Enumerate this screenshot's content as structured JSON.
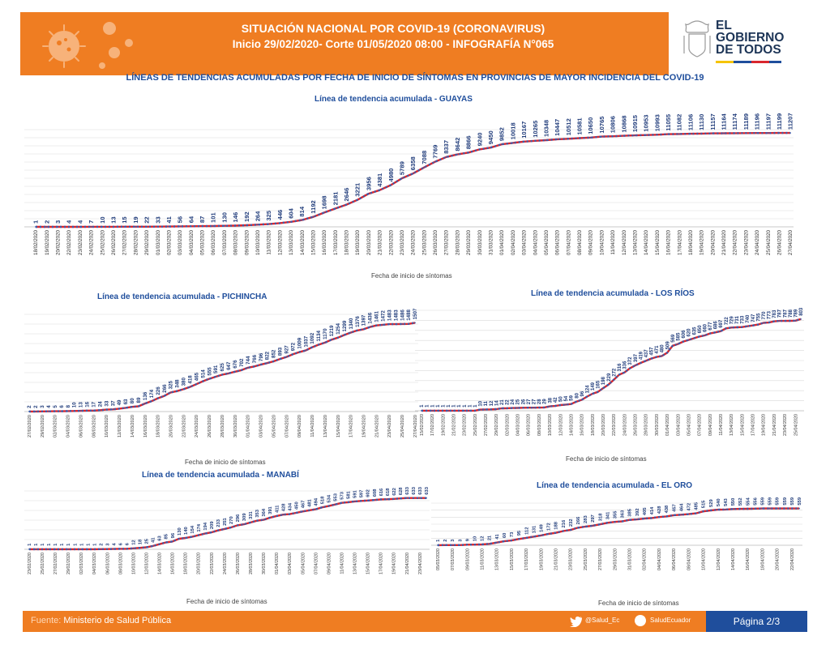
{
  "header": {
    "title_line1": "SITUACIÓN NACIONAL POR  COVID-19 (CORONAVIRUS)",
    "title_line2": "Inicio 29/02/2020- Corte 01/05/2020 08:00  - INFOGRAFÍA N°065",
    "gov_logo_text": "EL GOBIERNO DE TODOS"
  },
  "main_title": "LÍNEAS DE TENDENCIAS ACUMULADAS POR FECHA DE INICIO DE SÍNTOMAS EN PROVINCIAS DE MAYOR INCIDENCIA DEL COVID-19",
  "footer": {
    "source_label": "Fuente:",
    "source_value": "Ministerio de Salud Pública",
    "twitter": "@Salud_Ec",
    "facebook": "SaludEcuador",
    "page": "Página 2/3"
  },
  "colors": {
    "orange": "#ef7d22",
    "blue": "#1f4e9c",
    "line_red": "#d9272e",
    "line_blue": "#3a5bab"
  },
  "chart_data": [
    {
      "id": "guayas",
      "type": "line",
      "title": "Línea de tendencia acumulada - GUAYAS",
      "xlabel": "Fecha de inicio de síntomas",
      "start_date": "18/02/2020",
      "categories": [
        "18/02/2020",
        "19/02/2020",
        "20/02/2020",
        "22/02/2020",
        "23/02/2020",
        "24/02/2020",
        "25/02/2020",
        "26/02/2020",
        "27/02/2020",
        "28/02/2020",
        "29/02/2020",
        "01/03/2020",
        "02/03/2020",
        "03/03/2020",
        "04/03/2020",
        "05/03/2020",
        "06/03/2020",
        "07/03/2020",
        "08/03/2020",
        "09/03/2020",
        "10/03/2020",
        "11/03/2020",
        "12/03/2020",
        "13/03/2020",
        "14/03/2020",
        "15/03/2020",
        "16/03/2020",
        "17/03/2020",
        "18/03/2020",
        "19/03/2020",
        "20/03/2020",
        "21/03/2020",
        "22/03/2020",
        "23/03/2020",
        "24/03/2020",
        "25/03/2020",
        "26/03/2020",
        "27/03/2020",
        "28/03/2020",
        "29/03/2020",
        "30/03/2020",
        "31/03/2020",
        "01/04/2020",
        "02/04/2020",
        "03/04/2020",
        "04/04/2020",
        "05/04/2020",
        "06/04/2020",
        "07/04/2020",
        "08/04/2020",
        "09/04/2020",
        "10/04/2020",
        "11/04/2020",
        "12/04/2020",
        "13/04/2020",
        "14/04/2020",
        "15/04/2020",
        "16/04/2020",
        "17/04/2020",
        "18/04/2020",
        "19/04/2020",
        "20/04/2020",
        "21/04/2020",
        "22/04/2020",
        "23/04/2020",
        "24/04/2020",
        "25/04/2020",
        "26/04/2020",
        "27/04/2020"
      ],
      "values": [
        1,
        2,
        3,
        4,
        4,
        7,
        10,
        13,
        15,
        19,
        22,
        33,
        41,
        56,
        64,
        87,
        101,
        130,
        146,
        192,
        264,
        325,
        446,
        604,
        814,
        1192,
        1698,
        2181,
        2646,
        3221,
        3956,
        4381,
        4980,
        5789,
        6358,
        7088,
        7769,
        8337,
        8642,
        8866,
        9240,
        9450,
        9852,
        10018,
        10167,
        10265,
        10348,
        10447,
        10512,
        10581,
        10650,
        10765,
        10806,
        10868,
        10915,
        10953,
        10993,
        11055,
        11082,
        11106,
        11130,
        11157,
        11164,
        11174,
        11189,
        11196,
        11197,
        11199,
        11207
      ],
      "ylim": [
        0,
        11600
      ]
    },
    {
      "id": "pichincha",
      "type": "line",
      "title": "Línea de tendencia acumulada - PICHINCHA",
      "xlabel": "Fecha de inicio de síntomas",
      "categories": [
        "27/02/2020",
        "28/02/2020",
        "29/02/2020",
        "01/03/2020",
        "02/03/2020",
        "03/03/2020",
        "04/03/2020",
        "05/03/2020",
        "06/03/2020",
        "07/03/2020",
        "08/03/2020",
        "09/03/2020",
        "10/03/2020",
        "11/03/2020",
        "12/03/2020",
        "13/03/2020",
        "14/03/2020",
        "15/03/2020",
        "16/03/2020",
        "17/03/2020",
        "18/03/2020",
        "19/03/2020",
        "20/03/2020",
        "21/03/2020",
        "22/03/2020",
        "23/03/2020",
        "24/03/2020",
        "25/03/2020",
        "26/03/2020",
        "27/03/2020",
        "28/03/2020",
        "29/03/2020",
        "30/03/2020",
        "31/03/2020",
        "01/04/2020",
        "02/04/2020",
        "03/04/2020",
        "04/04/2020",
        "05/04/2020",
        "06/04/2020",
        "07/04/2020",
        "08/04/2020",
        "09/04/2020",
        "10/04/2020",
        "11/04/2020",
        "12/04/2020",
        "13/04/2020",
        "14/04/2020",
        "15/04/2020",
        "16/04/2020",
        "17/04/2020",
        "18/04/2020",
        "19/04/2020",
        "20/04/2020",
        "21/04/2020",
        "22/04/2020",
        "23/04/2020",
        "24/04/2020",
        "25/04/2020",
        "26/04/2020",
        "27/04/2020"
      ],
      "values": [
        2,
        2,
        3,
        4,
        5,
        6,
        8,
        10,
        13,
        16,
        17,
        24,
        33,
        37,
        49,
        63,
        80,
        89,
        136,
        174,
        226,
        266,
        325,
        348,
        380,
        418,
        465,
        514,
        555,
        591,
        625,
        647,
        676,
        702,
        744,
        766,
        796,
        822,
        852,
        893,
        927,
        972,
        1009,
        1037,
        1092,
        1134,
        1170,
        1219,
        1254,
        1299,
        1340,
        1376,
        1397,
        1436,
        1461,
        1472,
        1483,
        1483,
        1486,
        1488,
        1507
      ],
      "ylim": [
        0,
        1650
      ]
    },
    {
      "id": "los-rios",
      "type": "line",
      "title": "Línea de tendencia acumulada - LOS RÍOS",
      "xlabel": "Fecha de inicio de síntomas",
      "categories": [
        "15/02/2020",
        "16/02/2020",
        "17/02/2020",
        "18/02/2020",
        "19/02/2020",
        "20/02/2020",
        "21/02/2020",
        "22/02/2020",
        "23/02/2020",
        "24/02/2020",
        "25/02/2020",
        "26/02/2020",
        "27/02/2020",
        "28/02/2020",
        "29/02/2020",
        "01/03/2020",
        "02/03/2020",
        "03/03/2020",
        "04/03/2020",
        "05/03/2020",
        "06/03/2020",
        "07/03/2020",
        "08/03/2020",
        "09/03/2020",
        "10/03/2020",
        "11/03/2020",
        "12/03/2020",
        "13/03/2020",
        "14/03/2020",
        "15/03/2020",
        "16/03/2020",
        "17/03/2020",
        "18/03/2020",
        "19/03/2020",
        "20/03/2020",
        "21/03/2020",
        "22/03/2020",
        "23/03/2020",
        "24/03/2020",
        "25/03/2020",
        "26/03/2020",
        "27/03/2020",
        "28/03/2020",
        "29/03/2020",
        "30/03/2020",
        "31/03/2020",
        "01/04/2020",
        "02/04/2020",
        "03/04/2020",
        "04/04/2020",
        "05/04/2020",
        "06/04/2020",
        "07/04/2020",
        "08/04/2020",
        "09/04/2020",
        "10/04/2020",
        "11/04/2020",
        "12/04/2020",
        "13/04/2020",
        "14/04/2020",
        "15/04/2020",
        "16/04/2020",
        "17/04/2020",
        "18/04/2020",
        "19/04/2020",
        "20/04/2020",
        "21/04/2020",
        "22/04/2020",
        "23/04/2020",
        "24/04/2020",
        "25/04/2020",
        "26/04/2020"
      ],
      "values": [
        1,
        1,
        1,
        1,
        1,
        1,
        1,
        1,
        1,
        1,
        1,
        10,
        11,
        12,
        14,
        21,
        22,
        24,
        25,
        26,
        27,
        27,
        28,
        29,
        38,
        42,
        50,
        54,
        59,
        80,
        96,
        124,
        149,
        165,
        198,
        229,
        272,
        316,
        336,
        372,
        397,
        419,
        437,
        457,
        471,
        480,
        509,
        569,
        585,
        606,
        620,
        635,
        650,
        660,
        677,
        686,
        697,
        722,
        729,
        731,
        733,
        740,
        747,
        755,
        770,
        773,
        783,
        787,
        787,
        788,
        789,
        803
      ],
      "ylim": [
        0,
        880
      ]
    },
    {
      "id": "manabi",
      "type": "line",
      "title": "Línea de tendencia acumulada - MANABÍ",
      "xlabel": "Fecha de inicio de síntomas",
      "categories": [
        "23/02/2020",
        "24/02/2020",
        "25/02/2020",
        "26/02/2020",
        "27/02/2020",
        "28/02/2020",
        "29/02/2020",
        "01/03/2020",
        "02/03/2020",
        "03/03/2020",
        "04/03/2020",
        "05/03/2020",
        "06/03/2020",
        "07/03/2020",
        "08/03/2020",
        "09/03/2020",
        "10/03/2020",
        "11/03/2020",
        "12/03/2020",
        "13/03/2020",
        "14/03/2020",
        "15/03/2020",
        "16/03/2020",
        "17/03/2020",
        "18/03/2020",
        "19/03/2020",
        "20/03/2020",
        "21/03/2020",
        "22/03/2020",
        "23/03/2020",
        "24/03/2020",
        "25/03/2020",
        "26/03/2020",
        "27/03/2020",
        "28/03/2020",
        "29/03/2020",
        "30/03/2020",
        "31/03/2020",
        "01/04/2020",
        "02/04/2020",
        "03/04/2020",
        "04/04/2020",
        "05/04/2020",
        "06/04/2020",
        "07/04/2020",
        "08/04/2020",
        "09/04/2020",
        "10/04/2020",
        "11/04/2020",
        "12/04/2020",
        "13/04/2020",
        "14/04/2020",
        "15/04/2020",
        "16/04/2020",
        "17/04/2020",
        "18/04/2020",
        "19/04/2020",
        "20/04/2020",
        "21/04/2020",
        "22/04/2020",
        "23/04/2020",
        "24/04/2020"
      ],
      "values": [
        1,
        1,
        1,
        1,
        1,
        1,
        1,
        1,
        1,
        1,
        1,
        2,
        3,
        4,
        6,
        6,
        12,
        18,
        25,
        41,
        63,
        85,
        96,
        130,
        140,
        154,
        174,
        194,
        209,
        233,
        251,
        270,
        296,
        309,
        331,
        353,
        364,
        391,
        411,
        428,
        434,
        450,
        467,
        481,
        494,
        518,
        534,
        553,
        573,
        581,
        591,
        597,
        602,
        608,
        616,
        618,
        622,
        628,
        633,
        633,
        633,
        633
      ],
      "ylim": [
        0,
        720
      ]
    },
    {
      "id": "el-oro",
      "type": "line",
      "title": "Línea de tendencia acumulada - EL ORO",
      "xlabel": "Fecha de inicio de síntomas",
      "categories": [
        "05/03/2020",
        "06/03/2020",
        "07/03/2020",
        "08/03/2020",
        "09/03/2020",
        "10/03/2020",
        "11/03/2020",
        "12/03/2020",
        "13/03/2020",
        "14/03/2020",
        "15/03/2020",
        "16/03/2020",
        "17/03/2020",
        "18/03/2020",
        "19/03/2020",
        "20/03/2020",
        "21/03/2020",
        "22/03/2020",
        "23/03/2020",
        "24/03/2020",
        "25/03/2020",
        "26/03/2020",
        "27/03/2020",
        "28/03/2020",
        "29/03/2020",
        "30/03/2020",
        "31/03/2020",
        "01/04/2020",
        "02/04/2020",
        "03/04/2020",
        "04/04/2020",
        "05/04/2020",
        "06/04/2020",
        "07/04/2020",
        "08/04/2020",
        "09/04/2020",
        "10/04/2020",
        "11/04/2020",
        "12/04/2020",
        "13/04/2020",
        "14/04/2020",
        "15/04/2020",
        "16/04/2020",
        "17/04/2020",
        "18/04/2020",
        "19/04/2020",
        "20/04/2020",
        "21/04/2020",
        "22/04/2020",
        "23/04/2020"
      ],
      "values": [
        1,
        2,
        3,
        3,
        9,
        10,
        12,
        21,
        41,
        60,
        73,
        95,
        112,
        131,
        149,
        172,
        188,
        216,
        232,
        266,
        283,
        297,
        318,
        341,
        355,
        363,
        385,
        392,
        405,
        414,
        428,
        438,
        457,
        464,
        472,
        485,
        515,
        529,
        540,
        543,
        550,
        552,
        554,
        556,
        559,
        559,
        559,
        559,
        559,
        559
      ],
      "ylim": [
        0,
        640
      ]
    }
  ]
}
